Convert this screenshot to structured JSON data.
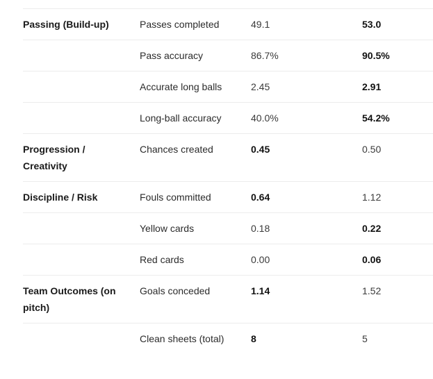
{
  "rows": [
    {
      "category": "Passing (Build-up)",
      "metric": "Passes completed",
      "a": "49.1",
      "b": "53.0",
      "bold": "b"
    },
    {
      "category": "",
      "metric": "Pass accuracy",
      "a": "86.7%",
      "b": "90.5%",
      "bold": "b"
    },
    {
      "category": "",
      "metric": "Accurate long balls",
      "a": "2.45",
      "b": "2.91",
      "bold": "b"
    },
    {
      "category": "",
      "metric": "Long-ball accuracy",
      "a": "40.0%",
      "b": "54.2%",
      "bold": "b"
    },
    {
      "category": "Progression / Creativity",
      "metric": "Chances created",
      "a": "0.45",
      "b": "0.50",
      "bold": "a"
    },
    {
      "category": "Discipline / Risk",
      "metric": "Fouls committed",
      "a": "0.64",
      "b": "1.12",
      "bold": "a"
    },
    {
      "category": "",
      "metric": "Yellow cards",
      "a": "0.18",
      "b": "0.22",
      "bold": "b"
    },
    {
      "category": "",
      "metric": "Red cards",
      "a": "0.00",
      "b": "0.06",
      "bold": "b"
    },
    {
      "category": "Team Outcomes (on pitch)",
      "metric": "Goals conceded",
      "a": "1.14",
      "b": "1.52",
      "bold": "a"
    },
    {
      "category": "",
      "metric": "Clean sheets (total)",
      "a": "8",
      "b": "5",
      "bold": "a"
    }
  ]
}
